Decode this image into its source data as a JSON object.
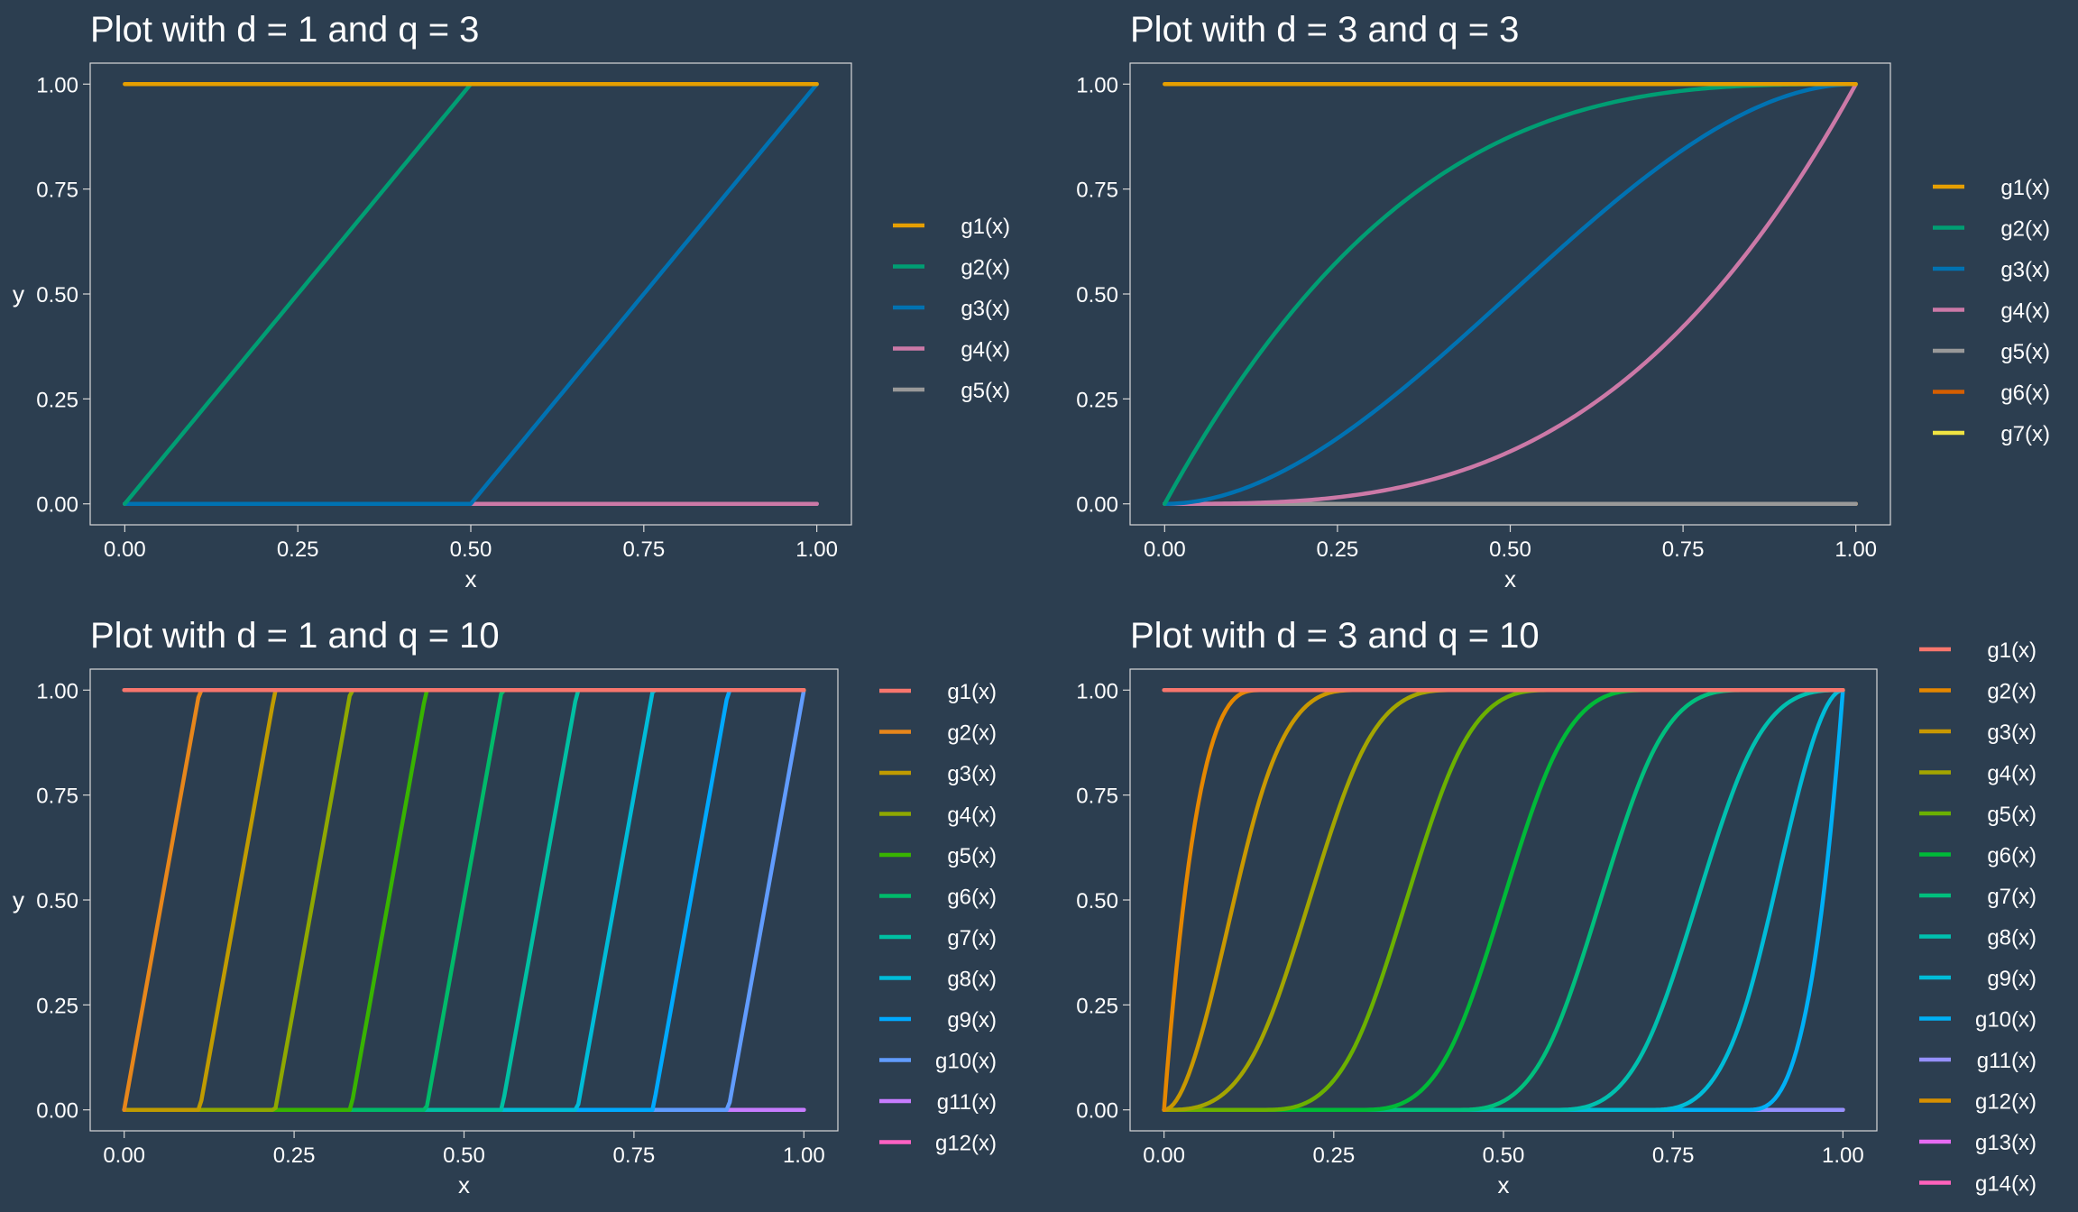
{
  "colors": {
    "background": "#2c3e50",
    "text": "#ffffff",
    "panel_border": "#d8d8d8",
    "axis_tick": "#d8d8d8"
  },
  "chart_data": [
    {
      "type": "line",
      "title": "Plot with d = 1 and  q = 3",
      "xlabel": "x",
      "ylabel": "y",
      "xlim": [
        0,
        1
      ],
      "ylim": [
        0,
        1
      ],
      "x_ticks": [
        "0.00",
        "0.25",
        "0.50",
        "0.75",
        "1.00"
      ],
      "y_ticks": [
        "0.00",
        "0.25",
        "0.50",
        "0.75",
        "1.00"
      ],
      "grid": false,
      "legend": "right",
      "d": 1,
      "q": 3,
      "series": [
        {
          "name": "g1(x)",
          "color": "#e69f00"
        },
        {
          "name": "g2(x)",
          "color": "#009e73"
        },
        {
          "name": "g3(x)",
          "color": "#0072b2"
        },
        {
          "name": "g4(x)",
          "color": "#cc79a7"
        },
        {
          "name": "g5(x)",
          "color": "#999999"
        }
      ]
    },
    {
      "type": "line",
      "title": "Plot with d = 3 and  q = 3",
      "xlabel": "x",
      "ylabel": "y",
      "xlim": [
        0,
        1
      ],
      "ylim": [
        0,
        1
      ],
      "x_ticks": [
        "0.00",
        "0.25",
        "0.50",
        "0.75",
        "1.00"
      ],
      "y_ticks": [
        "0.00",
        "0.25",
        "0.50",
        "0.75",
        "1.00"
      ],
      "grid": false,
      "legend": "right",
      "d": 3,
      "q": 3,
      "series": [
        {
          "name": "g1(x)",
          "color": "#e69f00"
        },
        {
          "name": "g2(x)",
          "color": "#009e73"
        },
        {
          "name": "g3(x)",
          "color": "#0072b2"
        },
        {
          "name": "g4(x)",
          "color": "#cc79a7"
        },
        {
          "name": "g5(x)",
          "color": "#999999"
        },
        {
          "name": "g6(x)",
          "color": "#d55e00"
        },
        {
          "name": "g7(x)",
          "color": "#f0e442"
        }
      ]
    },
    {
      "type": "line",
      "title": "Plot with d = 1 and  q = 10",
      "xlabel": "x",
      "ylabel": "y",
      "xlim": [
        0,
        1
      ],
      "ylim": [
        0,
        1
      ],
      "x_ticks": [
        "0.00",
        "0.25",
        "0.50",
        "0.75",
        "1.00"
      ],
      "y_ticks": [
        "0.00",
        "0.25",
        "0.50",
        "0.75",
        "1.00"
      ],
      "grid": false,
      "legend": "right",
      "d": 1,
      "q": 10,
      "series": [
        {
          "name": "g1(x)",
          "color": "#f8766d"
        },
        {
          "name": "g2(x)",
          "color": "#e7861b"
        },
        {
          "name": "g3(x)",
          "color": "#c09b00"
        },
        {
          "name": "g4(x)",
          "color": "#8fa800"
        },
        {
          "name": "g5(x)",
          "color": "#38b400"
        },
        {
          "name": "g6(x)",
          "color": "#00ba6a"
        },
        {
          "name": "g7(x)",
          "color": "#00c0a3"
        },
        {
          "name": "g8(x)",
          "color": "#00bcd8"
        },
        {
          "name": "g9(x)",
          "color": "#00a9ff"
        },
        {
          "name": "g10(x)",
          "color": "#619cff"
        },
        {
          "name": "g11(x)",
          "color": "#c77cff"
        },
        {
          "name": "g12(x)",
          "color": "#ff61c3"
        }
      ]
    },
    {
      "type": "line",
      "title": "Plot with d = 3 and  q = 10",
      "xlabel": "x",
      "ylabel": "y",
      "xlim": [
        0,
        1
      ],
      "ylim": [
        0,
        1
      ],
      "x_ticks": [
        "0.00",
        "0.25",
        "0.50",
        "0.75",
        "1.00"
      ],
      "y_ticks": [
        "0.00",
        "0.25",
        "0.50",
        "0.75",
        "1.00"
      ],
      "grid": false,
      "legend": "right",
      "d": 3,
      "q": 10,
      "series": [
        {
          "name": "g1(x)",
          "color": "#f8766d"
        },
        {
          "name": "g2(x)",
          "color": "#e58700"
        },
        {
          "name": "g3(x)",
          "color": "#c99800"
        },
        {
          "name": "g4(x)",
          "color": "#a3a500"
        },
        {
          "name": "g5(x)",
          "color": "#6bb100"
        },
        {
          "name": "g6(x)",
          "color": "#00ba38"
        },
        {
          "name": "g7(x)",
          "color": "#00bf7d"
        },
        {
          "name": "g8(x)",
          "color": "#00c0af"
        },
        {
          "name": "g9(x)",
          "color": "#00bcd8"
        },
        {
          "name": "g10(x)",
          "color": "#00b0f6"
        },
        {
          "name": "g11(x)",
          "color": "#9590ff"
        },
        {
          "name": "g12(x)",
          "color": "#d89000"
        },
        {
          "name": "g13(x)",
          "color": "#e76bf3"
        },
        {
          "name": "g14(x)",
          "color": "#ff62bc"
        }
      ]
    }
  ]
}
